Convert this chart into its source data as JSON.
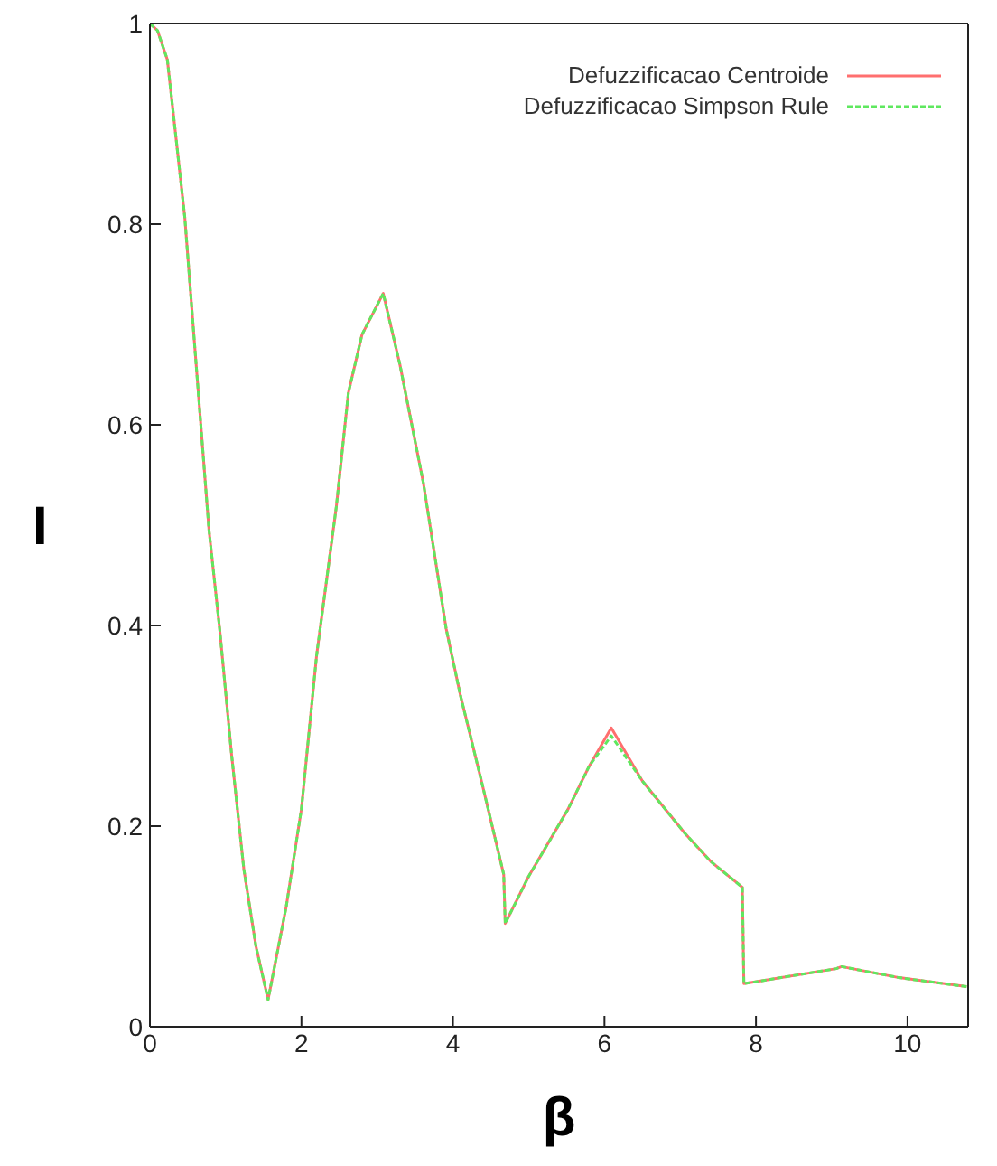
{
  "chart_data": {
    "type": "line",
    "xlabel": "β",
    "ylabel": "I",
    "x": [
      0,
      0.1,
      0.23,
      0.46,
      0.6,
      0.78,
      0.92,
      1.08,
      1.24,
      1.4,
      1.56,
      1.8,
      2.0,
      2.2,
      2.46,
      2.62,
      2.8,
      3.08,
      3.3,
      3.61,
      3.91,
      4.1,
      4.37,
      4.67,
      4.69,
      5.0,
      5.52,
      5.8,
      6.09,
      6.5,
      7.06,
      7.4,
      7.82,
      7.84,
      9.06,
      9.13,
      9.89,
      10.78
    ],
    "series": [
      {
        "name": "Defuzzificacao Centroide",
        "color": "#ff6f6f",
        "line_style": "solid",
        "values": [
          1,
          0.993,
          0.964,
          0.807,
          0.67,
          0.495,
          0.397,
          0.27,
          0.157,
          0.08,
          0.027,
          0.12,
          0.217,
          0.37,
          0.518,
          0.632,
          0.69,
          0.731,
          0.66,
          0.542,
          0.397,
          0.33,
          0.247,
          0.152,
          0.103,
          0.15,
          0.217,
          0.26,
          0.298,
          0.245,
          0.193,
          0.165,
          0.139,
          0.043,
          0.058,
          0.06,
          0.049,
          0.04
        ]
      },
      {
        "name": "Defuzzificacao Simpson Rule",
        "color": "#5fe85f",
        "line_style": "dashed",
        "values": [
          1,
          0.993,
          0.964,
          0.807,
          0.67,
          0.495,
          0.397,
          0.27,
          0.157,
          0.08,
          0.027,
          0.12,
          0.217,
          0.37,
          0.518,
          0.632,
          0.69,
          0.731,
          0.66,
          0.542,
          0.397,
          0.33,
          0.247,
          0.152,
          0.103,
          0.15,
          0.217,
          0.26,
          0.29,
          0.245,
          0.193,
          0.165,
          0.139,
          0.043,
          0.058,
          0.06,
          0.049,
          0.04
        ]
      }
    ],
    "xlim": [
      0,
      10.8
    ],
    "xticks": [
      0,
      2,
      4,
      6,
      8,
      10
    ],
    "ylim": [
      0,
      1
    ],
    "yticks": [
      0,
      0.2,
      0.4,
      0.6,
      0.8,
      1
    ],
    "grid": false,
    "legend": "top right",
    "marker": "none"
  }
}
